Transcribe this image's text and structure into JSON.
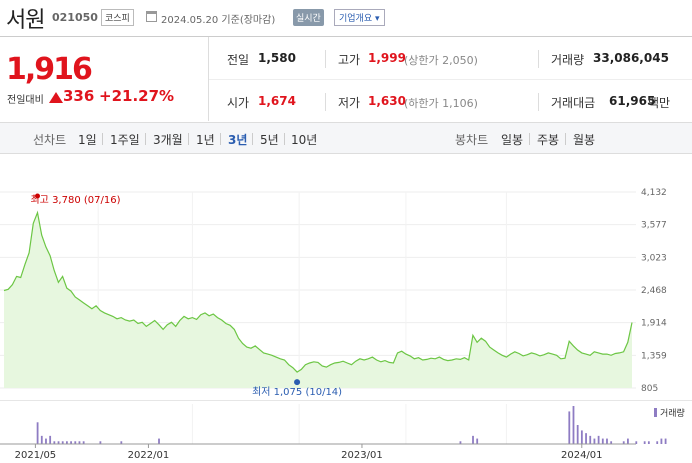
{
  "header": {
    "name": "서원",
    "code": "021050",
    "market": "코스피",
    "date": "2024.05.20 기준(장마감)",
    "realtime": "실시간",
    "company_info": "기업개요 ▾"
  },
  "price": {
    "current": "1,916",
    "change_label": "전일대비",
    "change": "336",
    "change_pct": "+21.27%"
  },
  "stats": {
    "prev_close_label": "전일",
    "prev_close": "1,580",
    "high_label": "고가",
    "high": "1,999",
    "upper_limit": "(상한가 2,050)",
    "volume_label": "거래량",
    "volume": "33,086,045",
    "open_label": "시가",
    "open": "1,674",
    "low_label": "저가",
    "low": "1,630",
    "lower_limit": "(하한가 1,106)",
    "value_label": "거래대금",
    "value": "61,965",
    "value_unit": "백만"
  },
  "tabs": {
    "line_label": "선차트",
    "line_periods": [
      "1일",
      "1주일",
      "3개월",
      "1년",
      "3년",
      "5년",
      "10년"
    ],
    "active": "3년",
    "candle_label": "봉차트",
    "candle_periods": [
      "일봉",
      "주봉",
      "월봉"
    ]
  },
  "colors": {
    "accent": "#e0141d",
    "line": "#6cc644",
    "fill": "#e7f7df",
    "volume": "#8e7cc3",
    "low_marker": "#2a5db0"
  },
  "chart_data": {
    "type": "area",
    "x_ticks": [
      "2021/05",
      "2022/01",
      "2023/01",
      "2024/01"
    ],
    "y_ticks": [
      "4,132",
      "3,577",
      "3,023",
      "2,468",
      "1,914",
      "1,359",
      "805"
    ],
    "ylim": [
      805,
      4132
    ],
    "annotations": {
      "high": "최고 3,780 (07/16)",
      "low": "최저 1,075 (10/14)"
    },
    "volume_legend": "거래량",
    "series": [
      {
        "values": [
          2460,
          2480,
          2560,
          2700,
          2680,
          2900,
          3100,
          3600,
          3780,
          3400,
          3200,
          3050,
          2800,
          2600,
          2700,
          2500,
          2450,
          2350,
          2300,
          2250,
          2200,
          2150,
          2200,
          2120,
          2080,
          2050,
          2020,
          1980,
          2000,
          1960,
          1940,
          1960,
          1900,
          1920,
          1850,
          1900,
          1950,
          1880,
          1800,
          1880,
          1920,
          1850,
          1950,
          2020,
          1980,
          2000,
          1970,
          2050,
          2080,
          2030,
          2060,
          2000,
          1960,
          1900,
          1870,
          1800,
          1650,
          1560,
          1500,
          1480,
          1520,
          1460,
          1400,
          1380,
          1360,
          1330,
          1300,
          1280,
          1200,
          1150,
          1075,
          1120,
          1200,
          1230,
          1250,
          1240,
          1180,
          1160,
          1200,
          1230,
          1240,
          1260,
          1230,
          1200,
          1260,
          1300,
          1280,
          1300,
          1330,
          1280,
          1250,
          1270,
          1240,
          1230,
          1400,
          1430,
          1380,
          1350,
          1300,
          1320,
          1280,
          1290,
          1310,
          1300,
          1330,
          1290,
          1270,
          1280,
          1300,
          1290,
          1320,
          1280,
          1700,
          1580,
          1650,
          1600,
          1500,
          1450,
          1400,
          1360,
          1330,
          1380,
          1420,
          1390,
          1350,
          1370,
          1400,
          1380,
          1350,
          1370,
          1400,
          1380,
          1360,
          1300,
          1310,
          1600,
          1520,
          1450,
          1400,
          1380,
          1360,
          1420,
          1400,
          1380,
          1380,
          1360,
          1390,
          1400,
          1420,
          1580,
          1916
        ]
      }
    ],
    "volume_values": [
      0,
      0,
      0,
      0,
      0,
      0,
      0,
      0,
      8,
      3,
      2,
      3,
      1,
      1,
      1,
      1,
      1,
      1,
      1,
      1,
      0,
      0,
      0,
      1,
      0,
      0,
      0,
      0,
      1,
      0,
      0,
      0,
      0,
      0,
      0,
      0,
      0,
      2,
      0,
      0,
      0,
      0,
      0,
      0,
      0,
      0,
      0,
      0,
      0,
      0,
      0,
      0,
      0,
      0,
      0,
      0,
      0,
      0,
      0,
      0,
      0,
      0,
      0,
      0,
      0,
      0,
      0,
      0,
      0,
      0,
      0,
      0,
      0,
      0,
      0,
      0,
      0,
      0,
      0,
      0,
      0,
      0,
      0,
      0,
      0,
      0,
      0,
      0,
      0,
      0,
      0,
      0,
      0,
      0,
      0,
      0,
      0,
      0,
      0,
      0,
      0,
      0,
      0,
      0,
      0,
      0,
      0,
      0,
      0,
      1,
      0,
      0,
      3,
      2,
      0,
      0,
      0,
      0,
      0,
      0,
      0,
      0,
      0,
      0,
      0,
      0,
      0,
      0,
      0,
      0,
      0,
      0,
      0,
      0,
      0,
      12,
      14,
      7,
      5,
      4,
      3,
      2,
      3,
      2,
      2,
      1,
      0,
      0,
      1,
      2,
      0,
      1,
      0,
      1,
      1,
      0,
      1,
      2,
      2
    ]
  }
}
